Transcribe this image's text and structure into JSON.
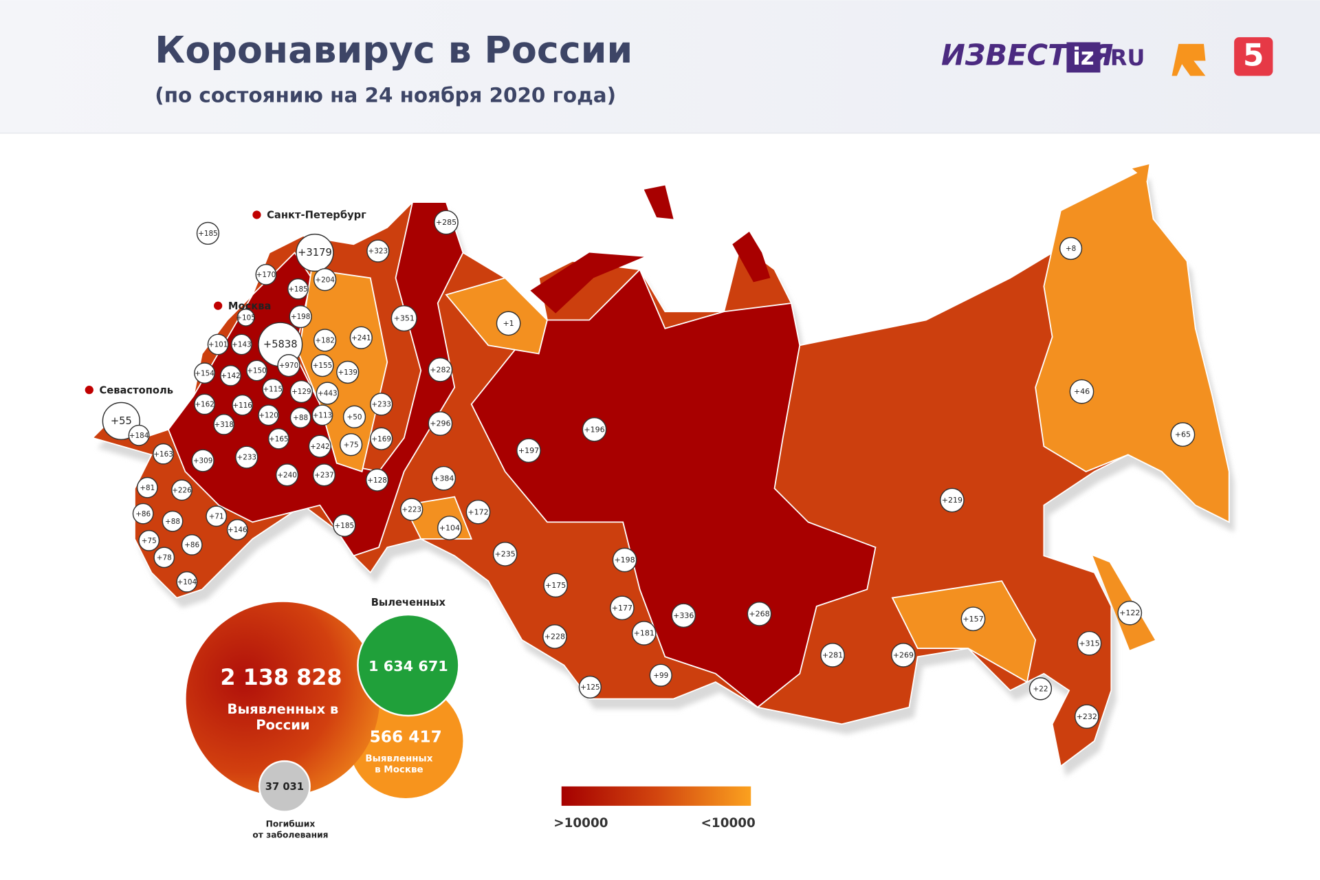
{
  "header": {
    "title": "Коронавирус в России",
    "subtitle": "(по состоянию на 24 ноября 2020 года)",
    "logos": {
      "izvestia": "ИЗВЕСТИЯ",
      "iz": "iz",
      "ru": ".RU",
      "channel5": "5"
    }
  },
  "cities": [
    "Санкт-Петербург",
    "Москва",
    "Севастополь"
  ],
  "map": {
    "bubbles": [
      "+185",
      "+285",
      "+3179",
      "+323",
      "+170",
      "+204",
      "+185",
      "+105",
      "+198",
      "+351",
      "+1",
      "+101",
      "+143",
      "+5838",
      "+182",
      "+241",
      "+970",
      "+155",
      "+139",
      "+282",
      "+154",
      "+142",
      "+150",
      "+115",
      "+129",
      "+443",
      "+233",
      "+55",
      "+162",
      "+116",
      "+120",
      "+88",
      "+113",
      "+50",
      "+296",
      "+184",
      "+318",
      "+165",
      "+242",
      "+75",
      "+169",
      "+197",
      "+196",
      "+163",
      "+309",
      "+233",
      "+240",
      "+237",
      "+128",
      "+384",
      "+81",
      "+226",
      "+86",
      "+88",
      "+71",
      "+146",
      "+223",
      "+172",
      "+104",
      "+219",
      "+8",
      "+46",
      "+65",
      "+75",
      "+86",
      "+185",
      "+235",
      "+198",
      "+78",
      "+104",
      "+175",
      "+177",
      "+122",
      "+336",
      "+268",
      "+157",
      "+181",
      "+228",
      "+281",
      "+269",
      "+315",
      "+99",
      "+125",
      "+22",
      "+232"
    ]
  },
  "stats": {
    "total": "2 138 828",
    "total_label": [
      "Выявленных в",
      "России"
    ],
    "recovered_title": "Вылеченных",
    "recovered": "1 634 671",
    "moscow": "566 417",
    "moscow_label": [
      "Выявленных",
      "в Москве"
    ],
    "deaths": "37 031",
    "deaths_label": [
      "Погибших",
      "от заболевания"
    ]
  },
  "legend": {
    "high": ">10000",
    "low": "<10000"
  }
}
